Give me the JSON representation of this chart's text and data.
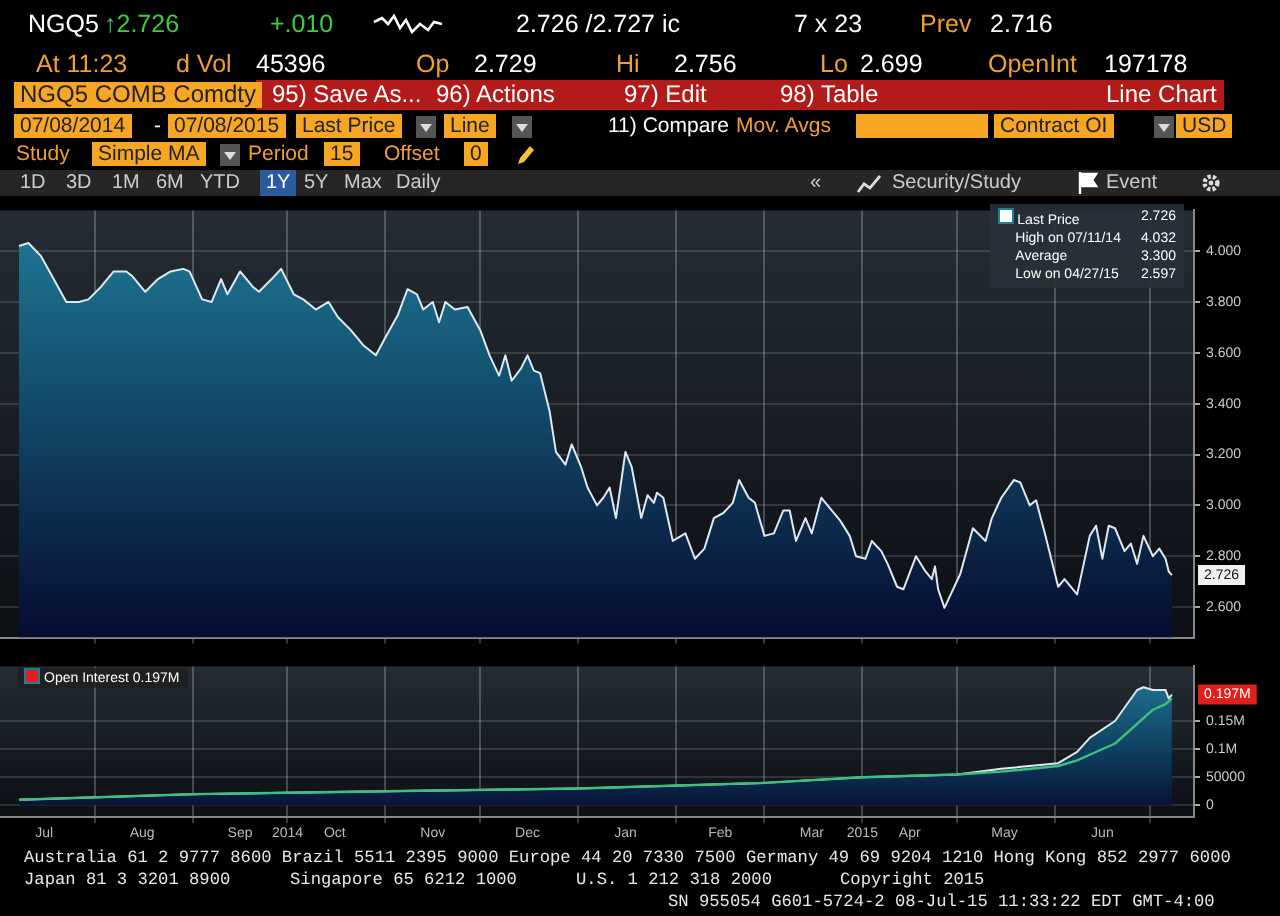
{
  "chart_data": [
    {
      "type": "area",
      "x": [
        "2014-07-08",
        "2014-07-11",
        "2014-07-15",
        "2014-07-19",
        "2014-07-23",
        "2014-07-27",
        "2014-07-30",
        "2014-08-03",
        "2014-08-07",
        "2014-08-11",
        "2014-08-13",
        "2014-08-17",
        "2014-08-21",
        "2014-08-25",
        "2014-08-29",
        "2014-08-31",
        "2014-09-04",
        "2014-09-07",
        "2014-09-10",
        "2014-09-12",
        "2014-09-16",
        "2014-09-20",
        "2014-09-22",
        "2014-09-26",
        "2014-09-29",
        "2014-10-03",
        "2014-10-06",
        "2014-10-10",
        "2014-10-14",
        "2014-10-17",
        "2014-10-21",
        "2014-10-25",
        "2014-10-29",
        "2014-11-01",
        "2014-11-05",
        "2014-11-08",
        "2014-11-11",
        "2014-11-13",
        "2014-11-16",
        "2014-11-18",
        "2014-11-20",
        "2014-11-23",
        "2014-11-27",
        "2014-12-01",
        "2014-12-04",
        "2014-12-07",
        "2014-12-09",
        "2014-12-11",
        "2014-12-14",
        "2014-12-16",
        "2014-12-18",
        "2014-12-20",
        "2014-12-23",
        "2014-12-25",
        "2014-12-28",
        "2014-12-30",
        "2015-01-02",
        "2015-01-04",
        "2015-01-07",
        "2015-01-09",
        "2015-01-11",
        "2015-01-13",
        "2015-01-16",
        "2015-01-18",
        "2015-01-21",
        "2015-01-23",
        "2015-01-25",
        "2015-01-26",
        "2015-01-28",
        "2015-01-31",
        "2015-02-04",
        "2015-02-07",
        "2015-02-10",
        "2015-02-13",
        "2015-02-16",
        "2015-02-19",
        "2015-02-21",
        "2015-02-24",
        "2015-02-26",
        "2015-03-01",
        "2015-03-04",
        "2015-03-07",
        "2015-03-09",
        "2015-03-11",
        "2015-03-14",
        "2015-03-16",
        "2015-03-19",
        "2015-03-21",
        "2015-03-25",
        "2015-03-28",
        "2015-03-30",
        "2015-04-02",
        "2015-04-04",
        "2015-04-07",
        "2015-04-09",
        "2015-04-12",
        "2015-04-14",
        "2015-04-18",
        "2015-04-21",
        "2015-04-23",
        "2015-04-24",
        "2015-04-25",
        "2015-04-27",
        "2015-05-02",
        "2015-05-06",
        "2015-05-10",
        "2015-05-12",
        "2015-05-15",
        "2015-05-19",
        "2015-05-21",
        "2015-05-24",
        "2015-05-26",
        "2015-05-29",
        "2015-06-02",
        "2015-06-04",
        "2015-06-08",
        "2015-06-12",
        "2015-06-14",
        "2015-06-16",
        "2015-06-18",
        "2015-06-20",
        "2015-06-23",
        "2015-06-25",
        "2015-06-27",
        "2015-06-29",
        "2015-07-02",
        "2015-07-04",
        "2015-07-06",
        "2015-07-07",
        "2015-07-08"
      ],
      "series": [
        {
          "name": "Last Price",
          "color": "#1e7d99",
          "values": [
            4.02,
            4.032,
            3.98,
            3.89,
            3.8,
            3.8,
            3.81,
            3.86,
            3.92,
            3.92,
            3.9,
            3.84,
            3.89,
            3.92,
            3.93,
            3.92,
            3.81,
            3.8,
            3.89,
            3.83,
            3.92,
            3.86,
            3.84,
            3.89,
            3.93,
            3.83,
            3.81,
            3.77,
            3.8,
            3.74,
            3.69,
            3.63,
            3.59,
            3.66,
            3.75,
            3.85,
            3.83,
            3.77,
            3.8,
            3.72,
            3.8,
            3.77,
            3.78,
            3.69,
            3.59,
            3.51,
            3.59,
            3.49,
            3.54,
            3.59,
            3.53,
            3.52,
            3.37,
            3.21,
            3.16,
            3.24,
            3.15,
            3.07,
            3.0,
            3.03,
            3.07,
            2.95,
            3.21,
            3.15,
            2.95,
            3.04,
            3.01,
            3.05,
            3.03,
            2.86,
            2.89,
            2.79,
            2.83,
            2.95,
            2.97,
            3.01,
            3.1,
            3.03,
            3.01,
            2.88,
            2.89,
            2.98,
            2.98,
            2.86,
            2.95,
            2.89,
            3.03,
            3.0,
            2.94,
            2.88,
            2.8,
            2.79,
            2.86,
            2.82,
            2.77,
            2.68,
            2.67,
            2.8,
            2.74,
            2.71,
            2.76,
            2.67,
            2.597,
            2.73,
            2.91,
            2.86,
            2.95,
            3.03,
            3.1,
            3.09,
            3.0,
            3.02,
            2.88,
            2.68,
            2.71,
            2.65,
            2.88,
            2.92,
            2.79,
            2.92,
            2.91,
            2.82,
            2.85,
            2.77,
            2.88,
            2.8,
            2.83,
            2.79,
            2.74,
            2.726
          ]
        }
      ],
      "xlim": [
        "2014-07-02",
        "2015-07-15"
      ],
      "xticks": [
        {
          "value": "2014-08-01",
          "label": null
        },
        {
          "value": "2014-09-01",
          "label": null
        },
        {
          "value": "2014-10-01",
          "label": null
        },
        {
          "value": "2014-11-01",
          "label": null
        },
        {
          "value": "2014-12-01",
          "label": null
        },
        {
          "value": "2015-01-01",
          "label": null
        },
        {
          "value": "2015-02-01",
          "label": null
        },
        {
          "value": "2015-03-01",
          "label": null
        },
        {
          "value": "2015-04-01",
          "label": null
        },
        {
          "value": "2015-05-01",
          "label": null
        },
        {
          "value": "2015-06-01",
          "label": null
        },
        {
          "value": "2015-07-01",
          "label": null
        }
      ],
      "ylim": [
        2.48,
        4.16
      ],
      "yticks": [
        {
          "value": 2.6,
          "label": "2.600"
        },
        {
          "value": 2.8,
          "label": "2.800"
        },
        {
          "value": 3,
          "label": "3.000"
        },
        {
          "value": 3.2,
          "label": "3.200"
        },
        {
          "value": 3.4,
          "label": "3.400"
        },
        {
          "value": 3.6,
          "label": "3.600"
        },
        {
          "value": 3.8,
          "label": "3.800"
        },
        {
          "value": 4,
          "label": "4.000"
        }
      ],
      "grid": true,
      "legend": "top right",
      "tick_labels": "y",
      "annotations": [
        "NGQ5",
        "↑2.726",
        "+.010",
        "2.726 /2.727 ic",
        "7 x 23",
        "Prev",
        "2.716",
        "At 11:23",
        "d Vol",
        "45396",
        "Op",
        "2.729",
        "Hi",
        "2.756",
        "Lo",
        "2.699",
        "OpenInt",
        "197178",
        "NGQ5 COMB Comdty",
        "95) Save As...",
        "96) Actions",
        "97) Edit",
        "98) Table",
        "Line Chart",
        "07/08/2014",
        "-",
        "07/08/2015",
        "Last Price",
        "Line",
        "11) Compare",
        "Mov. Avgs",
        "Contract OI",
        "USD",
        "Study",
        "Simple MA",
        "Period",
        "15",
        "Offset",
        "0",
        "1D",
        "3D",
        "1M",
        "6M",
        "YTD",
        "1Y",
        "5Y",
        "Max",
        "Daily",
        "«",
        "Security/Study",
        "Event",
        "2.726",
        "High on 07/11/14",
        "4.032",
        "Average",
        "3.300",
        "Low on 04/27/15",
        "2.597",
        {
          "text": "2.726",
          "x": "2015-07-08",
          "y": 2.726
        }
      ]
    },
    {
      "type": "area",
      "x": [
        "2014-07-08",
        "2014-09-01",
        "2014-11-01",
        "2015-01-01",
        "2015-03-01",
        "2015-04-01",
        "2015-05-01",
        "2015-05-15",
        "2015-06-02",
        "2015-06-08",
        "2015-06-12",
        "2015-06-20",
        "2015-06-27",
        "2015-06-29",
        "2015-07-02",
        "2015-07-06",
        "2015-07-07",
        "2015-07-08"
      ],
      "series": [
        {
          "name": "Open Interest 0.197M",
          "color": "#1e7d99",
          "values": [
            10000,
            20000,
            25000,
            30000,
            40000,
            50000,
            55000,
            65000,
            75000,
            95000,
            120000,
            150000,
            205000,
            210000,
            205000,
            205000,
            190000,
            197000
          ]
        },
        {
          "type": "line",
          "color": "#3ec07a",
          "values": [
            10000,
            20000,
            25000,
            30000,
            40000,
            50000,
            55000,
            60000,
            70000,
            80000,
            90000,
            110000,
            145000,
            155000,
            170000,
            180000,
            185000,
            190000
          ]
        }
      ],
      "xlim": [
        "2014-07-02",
        "2015-07-15"
      ],
      "xticks": [
        {
          "value": "2014-07-16",
          "label": "Jul"
        },
        {
          "value": "2014-08-01",
          "label": null
        },
        {
          "value": "2014-08-16",
          "label": "Aug"
        },
        {
          "value": "2014-09-01",
          "label": null
        },
        {
          "value": "2014-09-16",
          "label": "Sep"
        },
        {
          "value": "2014-10-01",
          "label": "2014"
        },
        {
          "value": "2014-10-16",
          "label": "Oct"
        },
        {
          "value": "2014-11-01",
          "label": null
        },
        {
          "value": "2014-11-16",
          "label": "Nov"
        },
        {
          "value": "2014-12-01",
          "label": null
        },
        {
          "value": "2014-12-16",
          "label": "Dec"
        },
        {
          "value": "2015-01-01",
          "label": null
        },
        {
          "value": "2015-01-16",
          "label": "Jan"
        },
        {
          "value": "2015-02-01",
          "label": null
        },
        {
          "value": "2015-02-15",
          "label": "Feb"
        },
        {
          "value": "2015-03-01",
          "label": null
        },
        {
          "value": "2015-03-16",
          "label": "Mar"
        },
        {
          "value": "2015-04-01",
          "label": "2015"
        },
        {
          "value": "2015-04-16",
          "label": "Apr"
        },
        {
          "value": "2015-05-01",
          "label": null
        },
        {
          "value": "2015-05-16",
          "label": "May"
        },
        {
          "value": "2015-06-01",
          "label": null
        },
        {
          "value": "2015-06-16",
          "label": "Jun"
        },
        {
          "value": "2015-07-01",
          "label": null
        }
      ],
      "ylim": [
        -21000,
        247000
      ],
      "yticks": [
        0,
        50000,
        {
          "value": 100000,
          "label": "0.1M"
        },
        {
          "value": 150000,
          "label": "0.15M"
        }
      ],
      "grid": true,
      "legend": "top left",
      "annotations": [
        "Australia 61 2 9777 8600 Brazil 5511 2395 9000 Europe 44 20 7330 7500 Germany 49 69 9204 1210 Hong Kong 852 2977 6000",
        "Japan 81 3 3201 8900",
        "Singapore 65 6212 1000",
        "U.S. 1 212 318 2000",
        "Copyright 2015",
        "SN 955054 G601-5724-2 08-Jul-15 11:33:22 EDT  GMT-4:00",
        {
          "text": "0.197M",
          "x": "2015-07-08",
          "y": 197000
        }
      ]
    }
  ]
}
